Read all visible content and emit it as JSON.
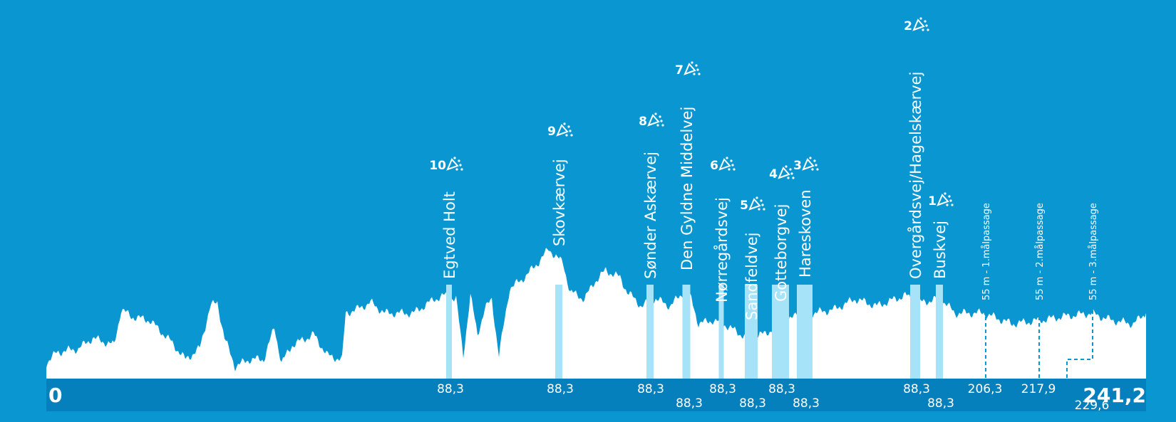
{
  "start": "0",
  "end": "241,2",
  "climbs": [
    {
      "number": "10",
      "name": "Egtved Holt",
      "km": "88,3"
    },
    {
      "number": "9",
      "name": "Skovkærvej",
      "km": "88,3"
    },
    {
      "number": "8",
      "name": "Sønder Askærvej",
      "km": "88,3"
    },
    {
      "number": "7",
      "name": "Den Gyldne Middelvej",
      "km": "88,3"
    },
    {
      "number": "6",
      "name": "Nørregårdsvej",
      "km": "88,3"
    },
    {
      "number": "5",
      "name": "Sandfeldvej",
      "km": "88,3"
    },
    {
      "number": "4",
      "name": "Gotteborgvej",
      "km": "88,3"
    },
    {
      "number": "3",
      "name": "Hareskoven",
      "km": "88,3"
    },
    {
      "number": "2",
      "name": "Overgårdsvej/Hagelskærvej",
      "km": "88,3"
    },
    {
      "number": "1",
      "name": "Buskvej",
      "km": "88,3"
    }
  ],
  "passages": [
    {
      "label": "55 m - 1.målpassage",
      "km": "206,3"
    },
    {
      "label": "55 m - 2.målpassage",
      "km": "217,9"
    },
    {
      "label": "55 m - 3.målpassage",
      "km": "229,6"
    }
  ]
}
